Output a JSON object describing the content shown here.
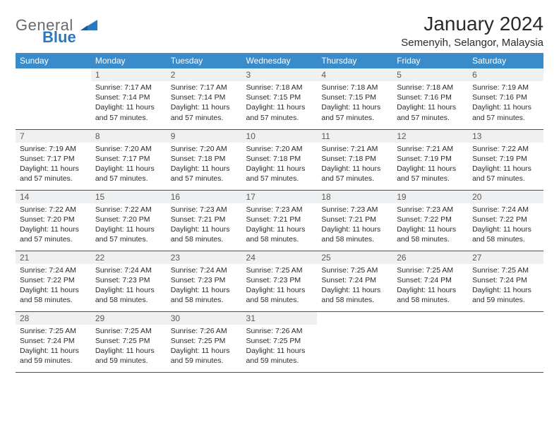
{
  "logo": {
    "word1": "General",
    "word2": "Blue"
  },
  "title": "January 2024",
  "location": "Semenyih, Selangor, Malaysia",
  "colors": {
    "header_bg": "#3a8bc9",
    "header_text": "#ffffff",
    "daynum_bg": "#eef0f1",
    "rule": "#2b5a7a",
    "logo_gray": "#6a6a6a",
    "logo_blue": "#2b78c2"
  },
  "weekdays": [
    "Sunday",
    "Monday",
    "Tuesday",
    "Wednesday",
    "Thursday",
    "Friday",
    "Saturday"
  ],
  "start_offset": 1,
  "days": [
    {
      "n": 1,
      "sunrise": "7:17 AM",
      "sunset": "7:14 PM",
      "daylight": "11 hours and 57 minutes."
    },
    {
      "n": 2,
      "sunrise": "7:17 AM",
      "sunset": "7:14 PM",
      "daylight": "11 hours and 57 minutes."
    },
    {
      "n": 3,
      "sunrise": "7:18 AM",
      "sunset": "7:15 PM",
      "daylight": "11 hours and 57 minutes."
    },
    {
      "n": 4,
      "sunrise": "7:18 AM",
      "sunset": "7:15 PM",
      "daylight": "11 hours and 57 minutes."
    },
    {
      "n": 5,
      "sunrise": "7:18 AM",
      "sunset": "7:16 PM",
      "daylight": "11 hours and 57 minutes."
    },
    {
      "n": 6,
      "sunrise": "7:19 AM",
      "sunset": "7:16 PM",
      "daylight": "11 hours and 57 minutes."
    },
    {
      "n": 7,
      "sunrise": "7:19 AM",
      "sunset": "7:17 PM",
      "daylight": "11 hours and 57 minutes."
    },
    {
      "n": 8,
      "sunrise": "7:20 AM",
      "sunset": "7:17 PM",
      "daylight": "11 hours and 57 minutes."
    },
    {
      "n": 9,
      "sunrise": "7:20 AM",
      "sunset": "7:18 PM",
      "daylight": "11 hours and 57 minutes."
    },
    {
      "n": 10,
      "sunrise": "7:20 AM",
      "sunset": "7:18 PM",
      "daylight": "11 hours and 57 minutes."
    },
    {
      "n": 11,
      "sunrise": "7:21 AM",
      "sunset": "7:18 PM",
      "daylight": "11 hours and 57 minutes."
    },
    {
      "n": 12,
      "sunrise": "7:21 AM",
      "sunset": "7:19 PM",
      "daylight": "11 hours and 57 minutes."
    },
    {
      "n": 13,
      "sunrise": "7:22 AM",
      "sunset": "7:19 PM",
      "daylight": "11 hours and 57 minutes."
    },
    {
      "n": 14,
      "sunrise": "7:22 AM",
      "sunset": "7:20 PM",
      "daylight": "11 hours and 57 minutes."
    },
    {
      "n": 15,
      "sunrise": "7:22 AM",
      "sunset": "7:20 PM",
      "daylight": "11 hours and 57 minutes."
    },
    {
      "n": 16,
      "sunrise": "7:23 AM",
      "sunset": "7:21 PM",
      "daylight": "11 hours and 58 minutes."
    },
    {
      "n": 17,
      "sunrise": "7:23 AM",
      "sunset": "7:21 PM",
      "daylight": "11 hours and 58 minutes."
    },
    {
      "n": 18,
      "sunrise": "7:23 AM",
      "sunset": "7:21 PM",
      "daylight": "11 hours and 58 minutes."
    },
    {
      "n": 19,
      "sunrise": "7:23 AM",
      "sunset": "7:22 PM",
      "daylight": "11 hours and 58 minutes."
    },
    {
      "n": 20,
      "sunrise": "7:24 AM",
      "sunset": "7:22 PM",
      "daylight": "11 hours and 58 minutes."
    },
    {
      "n": 21,
      "sunrise": "7:24 AM",
      "sunset": "7:22 PM",
      "daylight": "11 hours and 58 minutes."
    },
    {
      "n": 22,
      "sunrise": "7:24 AM",
      "sunset": "7:23 PM",
      "daylight": "11 hours and 58 minutes."
    },
    {
      "n": 23,
      "sunrise": "7:24 AM",
      "sunset": "7:23 PM",
      "daylight": "11 hours and 58 minutes."
    },
    {
      "n": 24,
      "sunrise": "7:25 AM",
      "sunset": "7:23 PM",
      "daylight": "11 hours and 58 minutes."
    },
    {
      "n": 25,
      "sunrise": "7:25 AM",
      "sunset": "7:24 PM",
      "daylight": "11 hours and 58 minutes."
    },
    {
      "n": 26,
      "sunrise": "7:25 AM",
      "sunset": "7:24 PM",
      "daylight": "11 hours and 58 minutes."
    },
    {
      "n": 27,
      "sunrise": "7:25 AM",
      "sunset": "7:24 PM",
      "daylight": "11 hours and 59 minutes."
    },
    {
      "n": 28,
      "sunrise": "7:25 AM",
      "sunset": "7:24 PM",
      "daylight": "11 hours and 59 minutes."
    },
    {
      "n": 29,
      "sunrise": "7:25 AM",
      "sunset": "7:25 PM",
      "daylight": "11 hours and 59 minutes."
    },
    {
      "n": 30,
      "sunrise": "7:26 AM",
      "sunset": "7:25 PM",
      "daylight": "11 hours and 59 minutes."
    },
    {
      "n": 31,
      "sunrise": "7:26 AM",
      "sunset": "7:25 PM",
      "daylight": "11 hours and 59 minutes."
    }
  ],
  "labels": {
    "sunrise": "Sunrise:",
    "sunset": "Sunset:",
    "daylight": "Daylight:"
  }
}
